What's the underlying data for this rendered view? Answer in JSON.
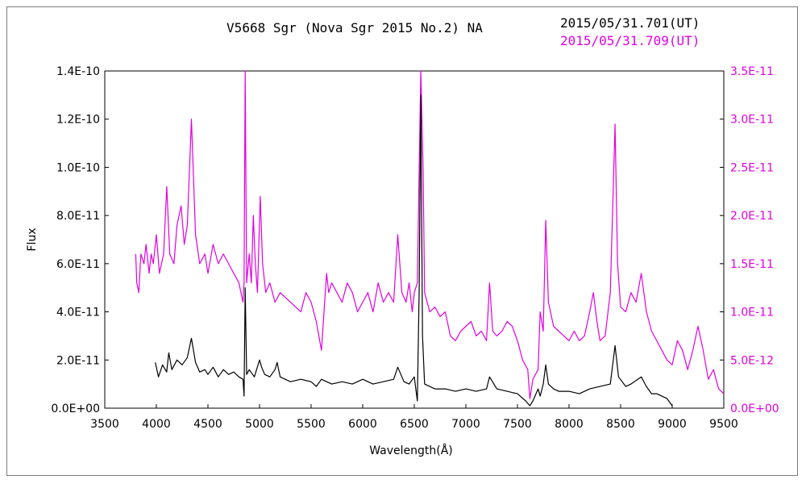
{
  "chart_data": {
    "type": "line",
    "title": "V5668 Sgr (Nova Sgr 2015 No.2)    NA",
    "xlabel": "Wavelength(Å)",
    "ylabel": "Flux",
    "xlim": [
      3500,
      9500
    ],
    "x_ticks": [
      "3500",
      "4000",
      "4500",
      "5000",
      "5500",
      "6000",
      "6500",
      "7000",
      "7500",
      "8000",
      "8500",
      "9000",
      "9500"
    ],
    "ylim_left": [
      0,
      1.4e-10
    ],
    "y_ticks_left": [
      "0.0E+00",
      "2.0E-11",
      "4.0E-11",
      "6.0E-11",
      "8.0E-11",
      "1.0E-10",
      "1.2E-10",
      "1.4E-10"
    ],
    "ylim_right": [
      0,
      3.5e-11
    ],
    "y_ticks_right": [
      "0.0E+00",
      "5.0E-12",
      "1.0E-11",
      "1.5E-11",
      "2.0E-11",
      "2.5E-11",
      "3.0E-11",
      "3.5E-11"
    ],
    "grid": false,
    "series": [
      {
        "name": "2015/05/31.701(UT)",
        "color": "#000000",
        "axis": "left",
        "x": [
          3990,
          4020,
          4060,
          4100,
          4120,
          4150,
          4200,
          4250,
          4300,
          4340,
          4380,
          4420,
          4470,
          4500,
          4550,
          4600,
          4650,
          4700,
          4750,
          4800,
          4840,
          4850,
          4861,
          4875,
          4900,
          4950,
          5000,
          5020,
          5050,
          5100,
          5150,
          5170,
          5200,
          5250,
          5300,
          5400,
          5500,
          5550,
          5600,
          5650,
          5700,
          5800,
          5900,
          6000,
          6100,
          6200,
          6300,
          6340,
          6400,
          6450,
          6500,
          6530,
          6548,
          6563,
          6580,
          6600,
          6650,
          6700,
          6800,
          6900,
          7000,
          7100,
          7200,
          7230,
          7300,
          7400,
          7500,
          7580,
          7620,
          7650,
          7700,
          7720,
          7750,
          7774,
          7800,
          7850,
          7900,
          8000,
          8100,
          8200,
          8300,
          8400,
          8446,
          8480,
          8550,
          8600,
          8700,
          8750,
          8800,
          8850,
          8950,
          9000
        ],
        "y": [
          1.9e-11,
          1.3e-11,
          1.8e-11,
          1.5e-11,
          2.3e-11,
          1.6e-11,
          2e-11,
          1.8e-11,
          2.1e-11,
          2.9e-11,
          1.9e-11,
          1.5e-11,
          1.6e-11,
          1.4e-11,
          1.7e-11,
          1.3e-11,
          1.6e-11,
          1.4e-11,
          1.5e-11,
          1.3e-11,
          1.2e-11,
          5e-12,
          5e-11,
          1.4e-11,
          1.6e-11,
          1.3e-11,
          2e-11,
          1.7e-11,
          1.4e-11,
          1.3e-11,
          1.6e-11,
          1.9e-11,
          1.3e-11,
          1.2e-11,
          1.1e-11,
          1.2e-11,
          1.1e-11,
          9e-12,
          1.2e-11,
          1.1e-11,
          1e-11,
          1.1e-11,
          1e-11,
          1.2e-11,
          1e-11,
          1.1e-11,
          1.2e-11,
          1.7e-11,
          1.1e-11,
          1e-11,
          1.3e-11,
          3e-12,
          5e-11,
          1.3e-10,
          3e-11,
          1e-11,
          9e-12,
          8e-12,
          8e-12,
          7e-12,
          8e-12,
          7e-12,
          8e-12,
          1.3e-11,
          8e-12,
          7e-12,
          6e-12,
          3e-12,
          1e-12,
          3e-12,
          8e-12,
          5e-12,
          1e-11,
          1.8e-11,
          1e-11,
          8e-12,
          7e-12,
          7e-12,
          6e-12,
          8e-12,
          9e-12,
          1e-11,
          2.6e-11,
          1.3e-11,
          9e-12,
          1e-11,
          1.3e-11,
          9e-12,
          6e-12,
          6e-12,
          4e-12,
          1e-12
        ]
      },
      {
        "name": "2015/05/31.709(UT)",
        "color": "#e000e0",
        "axis": "right",
        "x": [
          3800,
          3810,
          3830,
          3850,
          3880,
          3900,
          3930,
          3950,
          3970,
          4000,
          4030,
          4070,
          4101,
          4130,
          4170,
          4200,
          4240,
          4270,
          4300,
          4340,
          4380,
          4420,
          4470,
          4500,
          4550,
          4600,
          4650,
          4700,
          4750,
          4800,
          4840,
          4850,
          4861,
          4875,
          4900,
          4920,
          4940,
          4959,
          4980,
          5007,
          5030,
          5060,
          5100,
          5150,
          5200,
          5250,
          5300,
          5350,
          5400,
          5450,
          5500,
          5550,
          5600,
          5650,
          5670,
          5700,
          5750,
          5800,
          5850,
          5900,
          5950,
          6000,
          6050,
          6100,
          6150,
          6200,
          6250,
          6300,
          6340,
          6380,
          6420,
          6450,
          6480,
          6500,
          6530,
          6548,
          6563,
          6585,
          6600,
          6650,
          6700,
          6750,
          6800,
          6850,
          6900,
          6950,
          7000,
          7050,
          7100,
          7150,
          7200,
          7230,
          7260,
          7300,
          7350,
          7400,
          7450,
          7500,
          7550,
          7600,
          7620,
          7650,
          7700,
          7720,
          7750,
          7774,
          7800,
          7850,
          7900,
          7950,
          8000,
          8050,
          8100,
          8150,
          8200,
          8236,
          8270,
          8300,
          8350,
          8400,
          8446,
          8470,
          8500,
          8550,
          8600,
          8650,
          8700,
          8750,
          8800,
          8850,
          8900,
          8950,
          9000,
          9050,
          9100,
          9150,
          9200,
          9250,
          9300,
          9350,
          9400,
          9450,
          9500
        ],
        "y": [
          1.6e-11,
          1.3e-11,
          1.2e-11,
          1.6e-11,
          1.5e-11,
          1.7e-11,
          1.4e-11,
          1.6e-11,
          1.5e-11,
          1.8e-11,
          1.4e-11,
          1.6e-11,
          2.3e-11,
          1.6e-11,
          1.5e-11,
          1.9e-11,
          2.1e-11,
          1.7e-11,
          1.9e-11,
          3e-11,
          1.8e-11,
          1.5e-11,
          1.6e-11,
          1.4e-11,
          1.7e-11,
          1.5e-11,
          1.6e-11,
          1.5e-11,
          1.4e-11,
          1.3e-11,
          1.1e-11,
          1.3e-11,
          3.6e-11,
          1.3e-11,
          1.6e-11,
          1.3e-11,
          2e-11,
          1.5e-11,
          1.2e-11,
          2.2e-11,
          1.5e-11,
          1.2e-11,
          1.3e-11,
          1.1e-11,
          1.2e-11,
          1.15e-11,
          1.1e-11,
          1.05e-11,
          1e-11,
          1.2e-11,
          1.1e-11,
          9e-12,
          6e-12,
          1.4e-11,
          1.2e-11,
          1.3e-11,
          1.2e-11,
          1.1e-11,
          1.3e-11,
          1.2e-11,
          1e-11,
          1.1e-11,
          1.2e-11,
          1e-11,
          1.3e-11,
          1.1e-11,
          1.2e-11,
          1.1e-11,
          1.8e-11,
          1.2e-11,
          1.1e-11,
          1.3e-11,
          1e-11,
          1.2e-11,
          1.3e-11,
          2.5e-11,
          3.5e-11,
          2.5e-11,
          1.2e-11,
          1e-11,
          1.05e-11,
          9.5e-12,
          1e-11,
          7.5e-12,
          7e-12,
          8e-12,
          8.5e-12,
          9e-12,
          7.5e-12,
          8e-12,
          7e-12,
          1.3e-11,
          8e-12,
          7.5e-12,
          8e-12,
          9e-12,
          8.5e-12,
          7e-12,
          5e-12,
          4e-12,
          1e-12,
          3e-12,
          4e-12,
          1e-11,
          8e-12,
          1.95e-11,
          1.1e-11,
          8.5e-12,
          8e-12,
          7.5e-12,
          7e-12,
          8e-12,
          7e-12,
          7.5e-12,
          1e-11,
          1.2e-11,
          9e-12,
          7e-12,
          7.5e-12,
          1.2e-11,
          2.95e-11,
          1.5e-11,
          1.05e-11,
          1e-11,
          1.2e-11,
          1.1e-11,
          1.4e-11,
          1e-11,
          8e-12,
          7e-12,
          6e-12,
          5e-12,
          4.5e-12,
          7e-12,
          6e-12,
          4e-12,
          6e-12,
          8.5e-12,
          6e-12,
          3e-12,
          4e-12,
          2e-12,
          1.5e-12
        ]
      }
    ]
  },
  "colors": {
    "series_primary": "#000000",
    "series_secondary": "#e000e0",
    "axis": "#000000",
    "frame": "#7a7a7a"
  }
}
